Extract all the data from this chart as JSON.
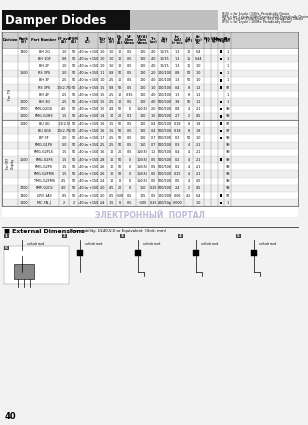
{
  "title": "Damper Diodes",
  "bg_color": "#f0f0f0",
  "header_bg": "#1a1a1a",
  "header_fg": "#ffffff",
  "table_header_bg": "#d0d0d0",
  "row_alt_bg": "#e8e8e8",
  "row_bg": "#f5f5f5",
  "page_number": "40",
  "watermark": "ЭЛЕКТРОННЫЙ  ПОРТАЛ",
  "ext_dim_title": "External Dimensions",
  "ext_dim_sub": "Flammability: UL40-V-0 or Equivalent  (Unit: mm)",
  "cols": [
    [
      "Division",
      16
    ],
    [
      "Rank\n(V)",
      11
    ],
    [
      "Part Number",
      30
    ],
    [
      "IF ave\n(A)",
      10
    ],
    [
      "IFSM\n(A)",
      9
    ],
    [
      "Tj\n(C)",
      20
    ],
    [
      "Tstr\n(C)",
      9
    ],
    [
      "Vcc\n(V)",
      9
    ],
    [
      "No\nIF\n(A)",
      7
    ],
    [
      "VF\nNom\nVmax",
      13
    ],
    [
      "VF(A)\nNom\nVmax",
      13
    ],
    [
      "Trr\n(us)",
      9
    ],
    [
      "Ect\n(uJ)",
      13
    ],
    [
      "Irr\n(uA)\nIr tes",
      13
    ],
    [
      "Cd\n(pF)",
      9
    ],
    [
      "tfr\n(us)\nFC",
      11
    ],
    [
      "Rth\nj-c",
      7
    ],
    [
      "Wtg\n(g)",
      7
    ],
    [
      "Ammo\nPkg",
      6
    ],
    [
      "Pkg\nNo.",
      7
    ]
  ],
  "rows": [
    {
      "division": "",
      "rank": "1300",
      "part": "BH 2G",
      "if_ave": "1.0",
      "ifsm": "50",
      "tj": "-40 to +150",
      "tstr": "1.0",
      "vcc": "1.0",
      "if_p": "10",
      "vf": "0.5",
      "vfa": "100",
      "trr": "4.0",
      "ect": "10/15",
      "irr1": "1.3",
      "cd": "10",
      "tfr": "0.4",
      "rth": "",
      "wtg": "",
      "ammo": "1",
      "pkg": "1"
    },
    {
      "division": "",
      "rank": "",
      "part": "BH 1GF",
      "if_ave": "0.8",
      "ifsm": "50",
      "tj": "-40 to +150",
      "tstr": "1.0",
      "vcc": "1.0",
      "if_p": "10",
      "vf": "0.5",
      "vfa": "100",
      "trr": "4.0",
      "ect": "10/15",
      "irr1": "1.3",
      "cd": "15",
      "tfr": "0.44",
      "rth": "",
      "wtg": "",
      "ammo": "1",
      "pkg": "1"
    },
    {
      "division": "",
      "rank": "",
      "part": "BH 2F",
      "if_ave": "1.0",
      "ifsm": "50",
      "tj": "-40 to +150",
      "tstr": "1.0",
      "vcc": "1.0",
      "if_p": "10",
      "vf": "0.5",
      "vfa": "100",
      "trr": "4.0",
      "ect": "10/15",
      "irr1": "1.3",
      "cd": "10",
      "tfr": "1.0",
      "rth": "",
      "wtg": "",
      "ammo": "",
      "pkg": "1"
    },
    {
      "division": "For TV",
      "rank": "1500",
      "part": "RS 3PS",
      "if_ave": "2.0",
      "ifsm": "50",
      "tj": "-40 to +150",
      "tstr": "1.1",
      "vcc": "0.8",
      "if_p": "50",
      "vf": "0.5",
      "vfa": "100",
      "trr": "2.0",
      "ect": "100/100",
      "irr1": "0.8",
      "cd": "50",
      "tfr": "1.0",
      "rth": "",
      "wtg": "",
      "ammo": "1",
      "pkg": "1"
    },
    {
      "division": "",
      "rank": "",
      "part": "BH 3F",
      "if_ave": "2.5",
      "ifsm": "50",
      "tj": "-40 to +150",
      "tstr": "1.0",
      "vcc": "2.5",
      "if_p": "10",
      "vf": "0.5",
      "vfa": "100",
      "trr": "4.0",
      "ect": "100/100",
      "irr1": "1.3",
      "cd": "50",
      "tfr": "1.0",
      "rth": "",
      "wtg": "",
      "ammo": "1",
      "pkg": "1"
    },
    {
      "division": "",
      "rank": "",
      "part": "RS 3PS",
      "if_ave": "1.5(2.75)",
      "ifsm": "50",
      "tj": "-40 to +150",
      "tstr": "1.5",
      "vcc": "0.8",
      "if_p": "50",
      "vf": "0.5",
      "vfa": "100",
      "trr": "1.0",
      "ect": "100/100",
      "irr1": "0.4",
      "cd": "8",
      "tfr": "1.2",
      "rth": "",
      "wtg": "",
      "ammo": "2",
      "pkg": "97"
    },
    {
      "division": "",
      "rank": "",
      "part": "BH 4F",
      "if_ave": "2.5",
      "ifsm": "50",
      "tj": "-40 to +150",
      "tstr": "1.5",
      "vcc": "2.5",
      "if_p": "10",
      "vf": "0.35",
      "vfa": "100",
      "trr": "4.0",
      "ect": "100/100",
      "irr1": "1.3",
      "cd": "8",
      "tfr": "1.2",
      "rth": "",
      "wtg": "",
      "ammo": "",
      "pkg": "1"
    },
    {
      "division": "",
      "rank": "1000",
      "part": "BH 3G",
      "if_ave": "2.5",
      "ifsm": "50",
      "tj": "-40 to +150",
      "tstr": "1.5",
      "vcc": "2.5",
      "if_p": "10",
      "vf": "0.5",
      "vfa": "100",
      "trr": "4.0",
      "ect": "500/500",
      "irr1": "3.8",
      "cd": "50",
      "tfr": "1.2",
      "rth": "",
      "wtg": "",
      "ammo": "1",
      "pkg": "1"
    },
    {
      "division": "",
      "rank": "1700",
      "part": "FMV-G2GS",
      "if_ave": "4.0",
      "ifsm": "50",
      "tj": "-40 to +150",
      "tstr": "1.5",
      "vcc": "4.8",
      "if_p": "50",
      "vf": "0",
      "vfa": "150(5)",
      "trr": "2.0",
      "ect": "500/500",
      "irr1": "0.8",
      "cd": "4",
      "tfr": "2.1",
      "rth": "",
      "wtg": "",
      "ammo": "2",
      "pkg": "99"
    },
    {
      "division": "",
      "rank": "1000",
      "part": "FMG-G3HS",
      "if_ave": "1.5",
      "ifsm": "50",
      "tj": "-40 to +150",
      "tstr": "1.4",
      "vcc": "10",
      "if_p": "20",
      "vf": "0.3",
      "vfa": "100",
      "trr": "1.5",
      "ect": "500/500",
      "irr1": "2.7",
      "cd": "2",
      "tfr": "4.5",
      "rth": "",
      "wtg": "",
      "ammo": "2",
      "pkg": "99"
    },
    {
      "division": "",
      "rank": "1080",
      "part": "BU 4G",
      "if_ave": "1.3(2.5)",
      "ifsm": "50",
      "tj": "-40 to +150",
      "tstr": "1.6",
      "vcc": "1.5",
      "if_p": "50",
      "vf": "0.5",
      "vfa": "100",
      "trr": "0.4",
      "ect": "500/500",
      "irr1": "0.18",
      "cd": "8",
      "tfr": "1.8",
      "rth": "",
      "wtg": "",
      "ammo": "1",
      "pkg": "97"
    },
    {
      "division": "",
      "rank": "",
      "part": "BU 4GS",
      "if_ave": "1.5(2.75)",
      "ifsm": "50",
      "tj": "-40 to +150",
      "tstr": "1.6",
      "vcc": "1.5",
      "if_p": "50",
      "vf": "0.5",
      "vfa": "100",
      "trr": "0.4",
      "ect": "500/500",
      "irr1": "0.18",
      "cd": "8",
      "tfr": "1.8",
      "rth": "",
      "wtg": "",
      "ammo": "1",
      "pkg": "97"
    },
    {
      "division": "",
      "rank": "",
      "part": "BP 3F",
      "if_ave": "2.0",
      "ifsm": "50",
      "tj": "-40 to +150",
      "tstr": "1.7",
      "vcc": "2.5",
      "if_p": "50",
      "vf": "0.5",
      "vfa": "100",
      "trr": "0.7",
      "ect": "500/500",
      "irr1": "0.3",
      "cd": "50",
      "tfr": "1.0",
      "rth": "",
      "wtg": "",
      "ammo": "1",
      "pkg": "99"
    },
    {
      "division": "For CRT\nDisplay",
      "rank": "",
      "part": "FMG-G1PS",
      "if_ave": "5.0",
      "ifsm": "50",
      "tj": "-40 to +150",
      "tstr": "2.5",
      "vcc": "2.5",
      "if_p": "50",
      "vf": "0.5",
      "vfa": "150",
      "trr": "0.7",
      "ect": "500/500",
      "irr1": "0.3",
      "cd": "4",
      "tfr": "2.1",
      "rth": "",
      "wtg": "",
      "ammo": "",
      "pkg": "99"
    },
    {
      "division": "",
      "rank": "",
      "part": "FMG-G2PLS",
      "if_ave": "1.5",
      "ifsm": "50",
      "tj": "-40 to +150",
      "tstr": "1.6",
      "vcc": "10",
      "if_p": "20",
      "vf": "0.5",
      "vfa": "150(5)",
      "trr": "1.2",
      "ect": "500/500",
      "irr1": "0.4",
      "cd": "4",
      "tfr": "2.1",
      "rth": "",
      "wtg": "",
      "ammo": "",
      "pkg": "99"
    },
    {
      "division": "",
      "rank": "1500",
      "part": "FMU-G2PS",
      "if_ave": "1.5",
      "ifsm": "50",
      "tj": "-40 to +150",
      "tstr": "2.8",
      "vcc": "10",
      "if_p": "50",
      "vf": "0",
      "vfa": "150(5)",
      "trr": "0.5",
      "ect": "500/500",
      "irr1": "0.2",
      "cd": "4",
      "tfr": "2.1",
      "rth": "",
      "wtg": "",
      "ammo": "1",
      "pkg": "99"
    },
    {
      "division": "",
      "rank": "",
      "part": "FMG-G2PS",
      "if_ave": "1.5",
      "ifsm": "50",
      "tj": "-40 to +150",
      "tstr": "2.6",
      "vcc": "10",
      "if_p": "50",
      "vf": "0",
      "vfa": "150(5)",
      "trr": "0.5",
      "ect": "500/500",
      "irr1": "0.2",
      "cd": "4",
      "tfr": "2.1",
      "rth": "",
      "wtg": "",
      "ammo": "",
      "pkg": "99"
    },
    {
      "division": "",
      "rank": "",
      "part": "FMG-G2FMS",
      "if_ave": "1.5",
      "ifsm": "50",
      "tj": "-40 to +150",
      "tstr": "2.6",
      "vcc": "10",
      "if_p": "50",
      "vf": "0",
      "vfa": "150(5)",
      "trr": "0.5",
      "ect": "500/500",
      "irr1": "0.25",
      "cd": "4",
      "tfr": "2.1",
      "rth": "",
      "wtg": "",
      "ammo": "",
      "pkg": "99"
    },
    {
      "division": "",
      "rank": "",
      "part": "TMG-G2FMS",
      "if_ave": "4.5",
      "ifsm": "50",
      "tj": "-40 to +150",
      "tstr": "2.4",
      "vcc": "10",
      "if_p": "8",
      "vf": "0",
      "vfa": "150(5)",
      "trr": "0.5",
      "ect": "500/500",
      "irr1": "0.5",
      "cd": "4",
      "tfr": "4.5",
      "rth": "",
      "wtg": "",
      "ammo": "",
      "pkg": "99"
    },
    {
      "division": "",
      "rank": "1700",
      "part": "FMP-G2CS",
      "if_ave": "4.0",
      "ifsm": "50",
      "tj": "-40 to +150",
      "tstr": "2.0",
      "vcc": "4.5",
      "if_p": "20",
      "vf": "0",
      "vfa": "150",
      "trr": "0.25",
      "ect": "500/500",
      "irr1": "2.4",
      "cd": "2",
      "tfr": "4.5",
      "rth": "",
      "wtg": "",
      "ammo": "",
      "pkg": "99"
    },
    {
      "division": "For CRT\nDisplay",
      "rank": "1300",
      "part": "UFD 3A3",
      "if_ave": "0.5",
      "ifsm": "50",
      "tj": "-40 to +150",
      "tstr": "2.0",
      "vcc": "0.5",
      "if_p": "~100",
      "vf": "0.5",
      "vfa": "105",
      "trr": "0.5",
      "ect": "100/300",
      "irr1": "0.06",
      "cd": "4.2",
      "tfr": "0.4",
      "rth": "",
      "wtg": "",
      "ammo": "1",
      "pkg": "97"
    },
    {
      "division": "",
      "rank": "1000",
      "part": "MC 3N-J",
      "if_ave": "2",
      "ifsm": "2",
      "tj": "-40 to +150",
      "tstr": "2.4",
      "vcc": "1.5",
      "if_p": "8",
      "vf": "0.5",
      "vfa": "~105",
      "trr": "0.25",
      "ect": "400/50p",
      "irr1": "0.000",
      "cd": "",
      "tfr": "1.0",
      "rth": "",
      "wtg": "",
      "ammo": "1",
      "pkg": "1"
    }
  ]
}
